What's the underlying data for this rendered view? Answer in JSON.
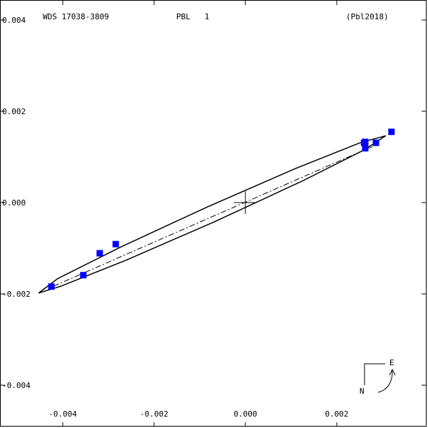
{
  "chart_data": {
    "type": "orbit",
    "title": "WDS 17038-3809",
    "subtitle": "PBL   1",
    "reference": "(Pbl2018)",
    "compass": {
      "east": "E",
      "north": "N"
    },
    "xlim": [
      -0.005375,
      0.004
    ],
    "ylim": [
      0.0044375,
      -0.0049375
    ],
    "xticks": [
      -0.004,
      -0.002,
      {
        "value": 0,
        "label": "0.000"
      },
      0.002
    ],
    "yticks": [
      0.004,
      0.002,
      {
        "value": 0,
        "label": "0.000"
      },
      -0.002,
      -0.004
    ],
    "primary": {
      "x": 0,
      "y": 0
    },
    "orbit": {
      "x": [
        0.003075,
        0.0026,
        0.001223,
        -0.000684,
        -0.002611,
        -0.004041,
        -0.004528,
        -0.004116,
        -0.002739,
        -0.000831,
        0.001095,
        0.002525,
        0.003075
      ],
      "y": [
        0.001464,
        0.001153,
        0.000461,
        -0.000422,
        -0.001261,
        -0.001831,
        -0.001981,
        -0.001668,
        -0.000977,
        -9.4e-05,
        0.000745,
        0.001316,
        0.001464
      ]
    },
    "node_line": {
      "x": [
        -0.0042,
        0.0029
      ],
      "y": [
        -0.00183,
        0.00128
      ]
    },
    "observations": {
      "color": "#0000ff",
      "x": [
        0.0032,
        0.002625,
        0.0026,
        0.00286,
        0.002625,
        -0.00319,
        -0.00284,
        -0.00355,
        -0.00425
      ],
      "y": [
        0.00155,
        0.00133,
        0.00131,
        0.00131,
        0.00119,
        -0.00111,
        -0.00091,
        -0.00159,
        -0.00184
      ]
    }
  }
}
